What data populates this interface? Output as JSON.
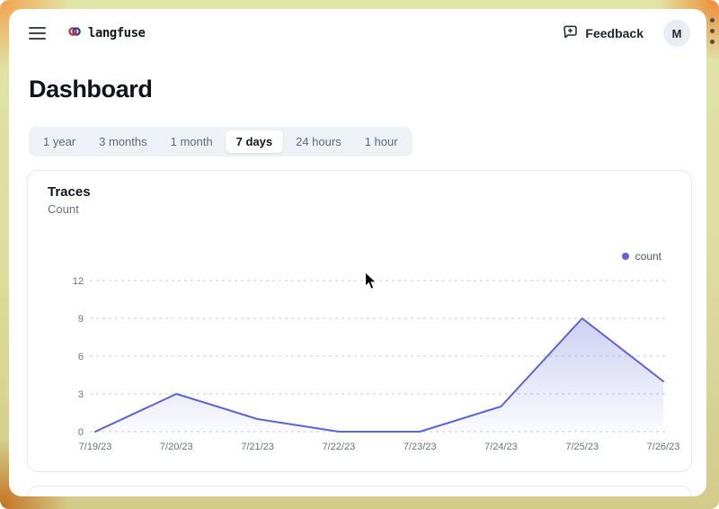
{
  "header": {
    "logo_text": "langfuse",
    "feedback_label": "Feedback",
    "avatar_initial": "M"
  },
  "page": {
    "title": "Dashboard"
  },
  "time_tabs": {
    "selected_index": 3,
    "items": [
      {
        "label": "1 year"
      },
      {
        "label": "3 months"
      },
      {
        "label": "1 month"
      },
      {
        "label": "7 days"
      },
      {
        "label": "24 hours"
      },
      {
        "label": "1 hour"
      }
    ]
  },
  "card": {
    "title": "Traces",
    "subtitle": "Count",
    "legend": {
      "label": "count",
      "color": "#5d63d9"
    }
  },
  "chart_data": {
    "type": "area",
    "title": "Traces",
    "ylabel": "Count",
    "x": [
      "7/19/23",
      "7/20/23",
      "7/21/23",
      "7/22/23",
      "7/23/23",
      "7/24/23",
      "7/25/23",
      "7/26/23"
    ],
    "series": [
      {
        "name": "count",
        "values": [
          0,
          3,
          1,
          0,
          0,
          2,
          9,
          4
        ],
        "color": "#5d63d9"
      }
    ],
    "ylim": [
      0,
      12
    ],
    "yticks": [
      0,
      3,
      6,
      9,
      12
    ],
    "grid": "dashed-horizontal",
    "legend_position": "top-right"
  }
}
